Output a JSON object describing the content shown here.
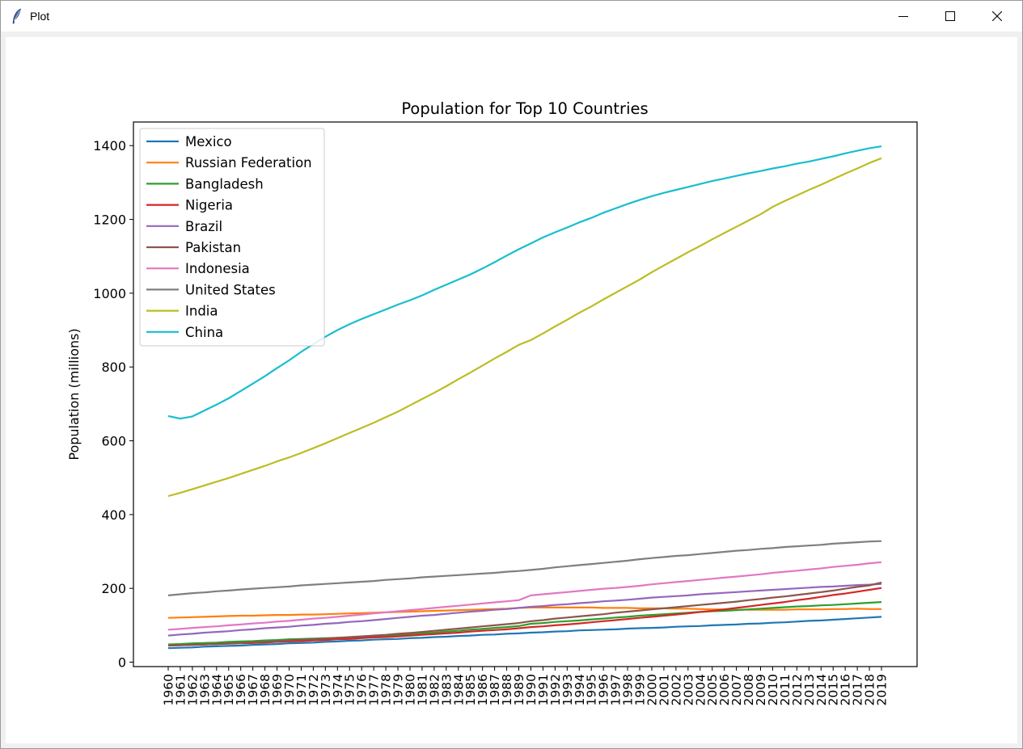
{
  "window": {
    "title": "Plot",
    "icon": "feather-icon",
    "controls": [
      "minimize-icon",
      "maximize-icon",
      "close-icon"
    ]
  },
  "chart_data": {
    "type": "line",
    "title": "Population for Top 10 Countries",
    "xlabel": "",
    "ylabel": "Population (millions)",
    "ylim": [
      -12,
      1464
    ],
    "yticks": [
      0,
      200,
      400,
      600,
      800,
      1000,
      1200,
      1400
    ],
    "legend_position": "upper left",
    "grid": false,
    "x": [
      "1960",
      "1961",
      "1962",
      "1963",
      "1964",
      "1965",
      "1966",
      "1967",
      "1968",
      "1969",
      "1970",
      "1971",
      "1972",
      "1973",
      "1974",
      "1975",
      "1976",
      "1977",
      "1978",
      "1979",
      "1980",
      "1981",
      "1982",
      "1983",
      "1984",
      "1985",
      "1986",
      "1987",
      "1988",
      "1989",
      "1990",
      "1991",
      "1992",
      "1993",
      "1994",
      "1995",
      "1996",
      "1997",
      "1998",
      "1999",
      "2000",
      "2001",
      "2002",
      "2003",
      "2004",
      "2005",
      "2006",
      "2007",
      "2008",
      "2009",
      "2010",
      "2011",
      "2012",
      "2013",
      "2014",
      "2015",
      "2016",
      "2017",
      "2018",
      "2019"
    ],
    "series": [
      {
        "name": "Mexico",
        "color": "#1f77b4",
        "values": [
          38,
          39,
          40,
          42,
          43,
          44,
          45,
          47,
          48,
          49,
          51,
          52,
          53,
          55,
          56,
          58,
          59,
          61,
          62,
          63,
          65,
          66,
          68,
          69,
          71,
          72,
          74,
          75,
          77,
          78,
          80,
          81,
          83,
          84,
          86,
          87,
          88,
          89,
          91,
          92,
          93,
          94,
          96,
          97,
          98,
          100,
          101,
          102,
          104,
          105,
          107,
          108,
          110,
          112,
          113,
          115,
          117,
          119,
          121,
          123
        ]
      },
      {
        "name": "Russian Federation",
        "color": "#ff7f0e",
        "values": [
          120,
          121,
          122,
          123,
          124,
          125,
          126,
          126,
          127,
          128,
          128,
          129,
          129,
          130,
          131,
          132,
          133,
          134,
          135,
          136,
          137,
          138,
          139,
          140,
          141,
          142,
          143,
          144,
          145,
          147,
          148,
          148,
          148,
          148,
          148,
          148,
          147,
          147,
          147,
          146,
          146,
          146,
          145,
          145,
          144,
          143,
          143,
          142,
          142,
          142,
          142,
          142,
          143,
          143,
          143,
          144,
          144,
          145,
          144,
          144
        ]
      },
      {
        "name": "Bangladesh",
        "color": "#2ca02c",
        "values": [
          48,
          49,
          51,
          52,
          53,
          55,
          56,
          57,
          59,
          60,
          62,
          63,
          64,
          65,
          66,
          67,
          69,
          70,
          72,
          74,
          76,
          78,
          80,
          83,
          85,
          88,
          90,
          93,
          95,
          98,
          104,
          106,
          109,
          111,
          113,
          116,
          118,
          121,
          123,
          126,
          128,
          130,
          132,
          134,
          136,
          138,
          139,
          141,
          143,
          145,
          147,
          149,
          151,
          152,
          154,
          155,
          157,
          159,
          161,
          163
        ]
      },
      {
        "name": "Nigeria",
        "color": "#d62728",
        "values": [
          45,
          46,
          47,
          48,
          49,
          50,
          51,
          52,
          53,
          55,
          56,
          57,
          59,
          60,
          62,
          63,
          65,
          67,
          68,
          70,
          72,
          74,
          76,
          78,
          80,
          83,
          85,
          87,
          89,
          92,
          95,
          97,
          100,
          102,
          105,
          108,
          111,
          114,
          117,
          120,
          123,
          126,
          129,
          132,
          136,
          139,
          143,
          147,
          151,
          155,
          159,
          163,
          168,
          172,
          177,
          182,
          186,
          191,
          196,
          201
        ]
      },
      {
        "name": "Brazil",
        "color": "#9467bd",
        "values": [
          72,
          75,
          77,
          80,
          82,
          84,
          87,
          89,
          92,
          94,
          96,
          99,
          101,
          104,
          106,
          109,
          111,
          114,
          117,
          120,
          123,
          126,
          128,
          131,
          134,
          137,
          139,
          142,
          144,
          147,
          150,
          152,
          155,
          157,
          160,
          162,
          165,
          167,
          169,
          172,
          175,
          177,
          179,
          181,
          184,
          186,
          188,
          190,
          192,
          194,
          196,
          198,
          200,
          202,
          204,
          205,
          207,
          209,
          210,
          212
        ]
      },
      {
        "name": "Pakistan",
        "color": "#8c564b",
        "values": [
          45,
          46,
          47,
          48,
          49,
          51,
          52,
          54,
          55,
          57,
          59,
          61,
          62,
          64,
          66,
          68,
          70,
          72,
          74,
          77,
          79,
          82,
          85,
          88,
          91,
          94,
          97,
          100,
          103,
          106,
          111,
          114,
          118,
          121,
          124,
          127,
          130,
          134,
          137,
          140,
          143,
          146,
          149,
          152,
          155,
          158,
          161,
          164,
          168,
          171,
          175,
          178,
          182,
          186,
          190,
          194,
          199,
          204,
          208,
          216
        ]
      },
      {
        "name": "Indonesia",
        "color": "#e377c2",
        "values": [
          88,
          90,
          93,
          95,
          97,
          100,
          102,
          105,
          107,
          110,
          112,
          115,
          118,
          120,
          123,
          126,
          129,
          132,
          135,
          138,
          141,
          144,
          147,
          150,
          153,
          156,
          159,
          162,
          165,
          168,
          181,
          184,
          187,
          190,
          193,
          196,
          199,
          201,
          204,
          207,
          211,
          214,
          217,
          220,
          223,
          226,
          229,
          232,
          235,
          238,
          242,
          245,
          248,
          251,
          254,
          258,
          261,
          264,
          268,
          271
        ]
      },
      {
        "name": "United States",
        "color": "#7f7f7f",
        "values": [
          181,
          184,
          187,
          189,
          192,
          194,
          197,
          199,
          201,
          203,
          205,
          208,
          210,
          212,
          214,
          216,
          218,
          220,
          223,
          225,
          227,
          230,
          232,
          234,
          236,
          238,
          240,
          242,
          245,
          247,
          250,
          253,
          257,
          260,
          263,
          266,
          269,
          272,
          275,
          279,
          282,
          285,
          288,
          290,
          293,
          296,
          299,
          302,
          304,
          307,
          309,
          312,
          314,
          316,
          318,
          321,
          323,
          325,
          327,
          328
        ]
      },
      {
        "name": "India",
        "color": "#bcbd22",
        "values": [
          450,
          459,
          469,
          479,
          489,
          499,
          510,
          521,
          532,
          544,
          555,
          567,
          580,
          593,
          607,
          621,
          635,
          649,
          664,
          679,
          696,
          713,
          730,
          748,
          767,
          785,
          804,
          823,
          841,
          860,
          873,
          891,
          910,
          928,
          947,
          964,
          983,
          1001,
          1019,
          1037,
          1057,
          1075,
          1093,
          1111,
          1128,
          1146,
          1163,
          1180,
          1197,
          1214,
          1234,
          1250,
          1265,
          1280,
          1294,
          1309,
          1324,
          1338,
          1353,
          1366
        ]
      },
      {
        "name": "China",
        "color": "#17becf",
        "values": [
          667,
          660,
          666,
          682,
          698,
          715,
          735,
          755,
          775,
          797,
          818,
          841,
          862,
          882,
          900,
          916,
          930,
          943,
          956,
          969,
          981,
          994,
          1009,
          1023,
          1037,
          1051,
          1067,
          1084,
          1102,
          1119,
          1135,
          1151,
          1165,
          1178,
          1192,
          1204,
          1218,
          1230,
          1242,
          1253,
          1263,
          1272,
          1280,
          1288,
          1296,
          1304,
          1311,
          1318,
          1325,
          1331,
          1338,
          1344,
          1351,
          1357,
          1364,
          1371,
          1379,
          1386,
          1393,
          1398
        ]
      }
    ]
  }
}
